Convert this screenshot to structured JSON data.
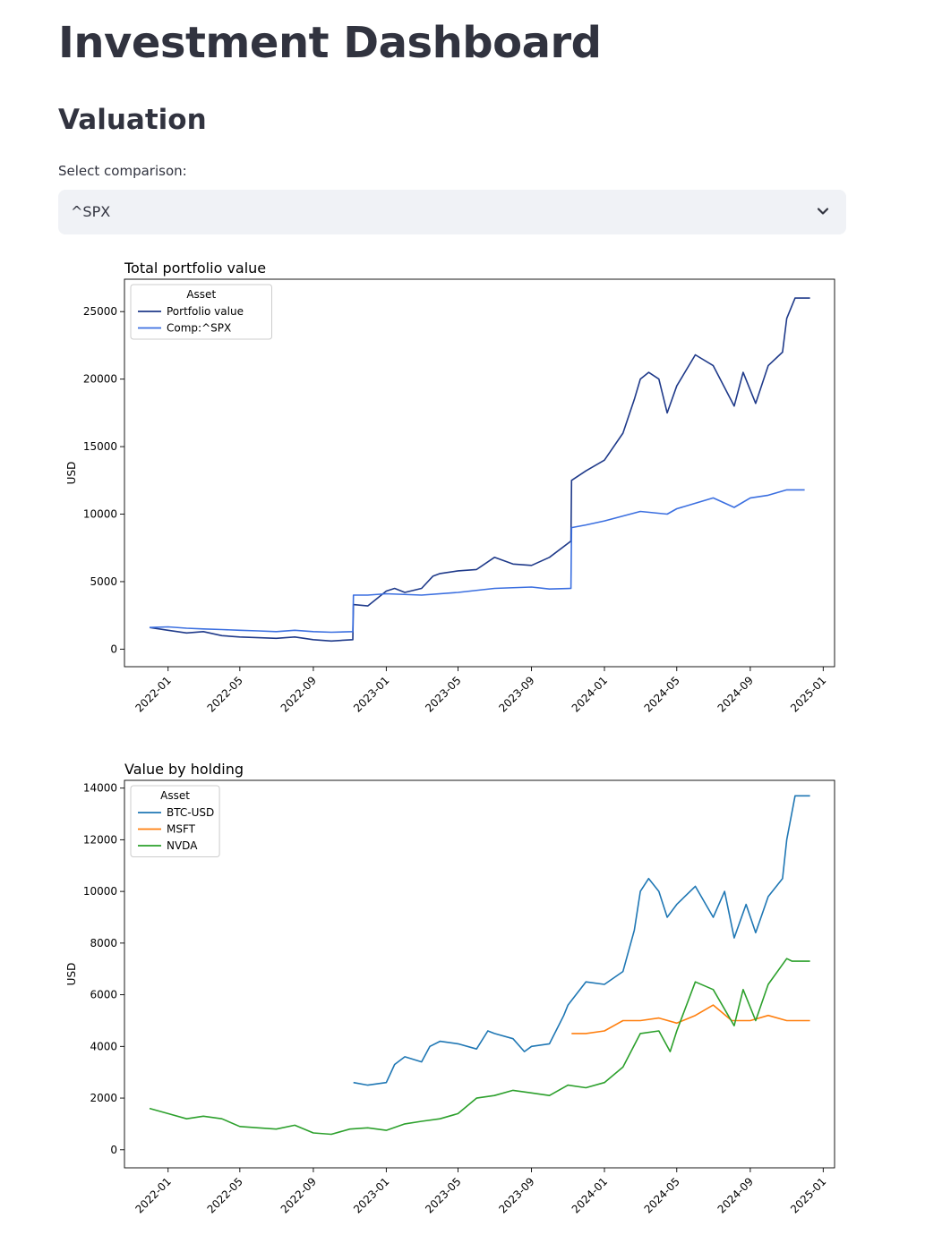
{
  "page": {
    "title": "Investment Dashboard",
    "section": "Valuation",
    "select_label": "Select comparison:",
    "select_value": "^SPX"
  },
  "chart_data": [
    {
      "type": "line",
      "title": "Total portfolio value",
      "xlabel": "",
      "ylabel": "USD",
      "x_ticks": [
        "2022-01",
        "2022-05",
        "2022-09",
        "2023-01",
        "2023-05",
        "2023-09",
        "2024-01",
        "2024-05",
        "2024-09",
        "2025-01"
      ],
      "xlim": [
        "2021-10-20",
        "2025-01-20"
      ],
      "ylim": [
        -1300,
        27400
      ],
      "y_ticks": [
        0,
        5000,
        10000,
        15000,
        20000,
        25000
      ],
      "grid": false,
      "legend": {
        "title": "Asset",
        "placement": "top-left"
      },
      "series": [
        {
          "name": "Portfolio value",
          "color": "#1f3a8a",
          "x": [
            "2021-12-01",
            "2022-01-01",
            "2022-02-01",
            "2022-03-01",
            "2022-04-01",
            "2022-05-01",
            "2022-06-01",
            "2022-07-01",
            "2022-08-01",
            "2022-09-01",
            "2022-10-01",
            "2022-11-06",
            "2022-11-07",
            "2022-12-01",
            "2023-01-01",
            "2023-01-15",
            "2023-02-01",
            "2023-03-01",
            "2023-03-20",
            "2023-04-01",
            "2023-05-01",
            "2023-06-01",
            "2023-07-01",
            "2023-08-01",
            "2023-09-01",
            "2023-10-01",
            "2023-11-06",
            "2023-11-07",
            "2023-12-01",
            "2024-01-01",
            "2024-02-01",
            "2024-02-20",
            "2024-03-01",
            "2024-03-15",
            "2024-04-01",
            "2024-04-15",
            "2024-05-01",
            "2024-06-01",
            "2024-07-01",
            "2024-08-05",
            "2024-08-20",
            "2024-09-10",
            "2024-10-01",
            "2024-10-25",
            "2024-11-01",
            "2024-11-15",
            "2024-12-01",
            "2024-12-10"
          ],
          "y": [
            1600,
            1400,
            1200,
            1300,
            1000,
            900,
            850,
            800,
            900,
            700,
            600,
            700,
            3300,
            3200,
            4300,
            4500,
            4200,
            4500,
            5400,
            5600,
            5800,
            5900,
            6800,
            6300,
            6200,
            6800,
            8000,
            12500,
            13200,
            14000,
            16000,
            18500,
            20000,
            20500,
            20000,
            17500,
            19500,
            21800,
            21000,
            18000,
            20500,
            18200,
            21000,
            22000,
            24500,
            26000,
            26000,
            26000
          ]
        },
        {
          "name": "Comp:^SPX",
          "color": "#3b6fe0",
          "x": [
            "2021-12-01",
            "2022-01-01",
            "2022-02-01",
            "2022-03-01",
            "2022-04-01",
            "2022-05-01",
            "2022-06-01",
            "2022-07-01",
            "2022-08-01",
            "2022-09-01",
            "2022-10-01",
            "2022-11-06",
            "2022-11-07",
            "2022-12-01",
            "2023-01-01",
            "2023-03-01",
            "2023-05-01",
            "2023-07-01",
            "2023-09-01",
            "2023-10-01",
            "2023-11-06",
            "2023-11-07",
            "2023-12-01",
            "2024-01-01",
            "2024-03-01",
            "2024-04-15",
            "2024-05-01",
            "2024-07-01",
            "2024-08-05",
            "2024-09-01",
            "2024-10-01",
            "2024-11-01",
            "2024-12-01"
          ],
          "y": [
            1600,
            1650,
            1550,
            1500,
            1450,
            1400,
            1350,
            1300,
            1400,
            1300,
            1250,
            1300,
            4000,
            4000,
            4100,
            4000,
            4200,
            4500,
            4600,
            4450,
            4500,
            9000,
            9200,
            9500,
            10200,
            10000,
            10400,
            11200,
            10500,
            11200,
            11400,
            11800,
            11800
          ]
        }
      ]
    },
    {
      "type": "line",
      "title": "Value by holding",
      "xlabel": "",
      "ylabel": "USD",
      "x_ticks": [
        "2022-01",
        "2022-05",
        "2022-09",
        "2023-01",
        "2023-05",
        "2023-09",
        "2024-01",
        "2024-05",
        "2024-09",
        "2025-01"
      ],
      "xlim": [
        "2021-10-20",
        "2025-01-20"
      ],
      "ylim": [
        -700,
        14300
      ],
      "y_ticks": [
        0,
        2000,
        4000,
        6000,
        8000,
        10000,
        12000,
        14000
      ],
      "grid": false,
      "legend": {
        "title": "Asset",
        "placement": "top-left"
      },
      "series": [
        {
          "name": "BTC-USD",
          "color": "#1f77b4",
          "x": [
            "2022-11-07",
            "2022-12-01",
            "2023-01-01",
            "2023-01-15",
            "2023-02-01",
            "2023-03-01",
            "2023-03-15",
            "2023-04-01",
            "2023-05-01",
            "2023-06-01",
            "2023-06-20",
            "2023-07-01",
            "2023-08-01",
            "2023-08-20",
            "2023-09-01",
            "2023-10-01",
            "2023-10-25",
            "2023-11-01",
            "2023-12-01",
            "2024-01-01",
            "2024-02-01",
            "2024-02-20",
            "2024-03-01",
            "2024-03-15",
            "2024-04-01",
            "2024-04-15",
            "2024-05-01",
            "2024-06-01",
            "2024-07-01",
            "2024-07-20",
            "2024-08-05",
            "2024-08-25",
            "2024-09-10",
            "2024-10-01",
            "2024-10-25",
            "2024-11-01",
            "2024-11-15",
            "2024-12-01",
            "2024-12-10"
          ],
          "y": [
            2600,
            2500,
            2600,
            3300,
            3600,
            3400,
            4000,
            4200,
            4100,
            3900,
            4600,
            4500,
            4300,
            3800,
            4000,
            4100,
            5200,
            5600,
            6500,
            6400,
            6900,
            8500,
            10000,
            10500,
            10000,
            9000,
            9500,
            10200,
            9000,
            10000,
            8200,
            9500,
            8400,
            9800,
            10500,
            12000,
            13700,
            13700,
            13700
          ]
        },
        {
          "name": "MSFT",
          "color": "#ff7f0e",
          "x": [
            "2023-11-07",
            "2023-12-01",
            "2024-01-01",
            "2024-02-01",
            "2024-03-01",
            "2024-04-01",
            "2024-05-01",
            "2024-06-01",
            "2024-07-01",
            "2024-08-01",
            "2024-09-01",
            "2024-10-01",
            "2024-11-01",
            "2024-12-01",
            "2024-12-10"
          ],
          "y": [
            4500,
            4500,
            4600,
            5000,
            5000,
            5100,
            4900,
            5200,
            5600,
            5000,
            5000,
            5200,
            5000,
            5000,
            5000
          ]
        },
        {
          "name": "NVDA",
          "color": "#2ca02c",
          "x": [
            "2021-12-01",
            "2022-01-01",
            "2022-02-01",
            "2022-03-01",
            "2022-04-01",
            "2022-05-01",
            "2022-06-01",
            "2022-07-01",
            "2022-08-01",
            "2022-09-01",
            "2022-10-01",
            "2022-11-01",
            "2022-12-01",
            "2023-01-01",
            "2023-02-01",
            "2023-03-01",
            "2023-04-01",
            "2023-05-01",
            "2023-06-01",
            "2023-07-01",
            "2023-08-01",
            "2023-09-01",
            "2023-10-01",
            "2023-11-01",
            "2023-12-01",
            "2024-01-01",
            "2024-02-01",
            "2024-03-01",
            "2024-04-01",
            "2024-04-20",
            "2024-05-01",
            "2024-06-01",
            "2024-07-01",
            "2024-08-05",
            "2024-08-20",
            "2024-09-10",
            "2024-10-01",
            "2024-11-01",
            "2024-11-10",
            "2024-12-01",
            "2024-12-10"
          ],
          "y": [
            1600,
            1400,
            1200,
            1300,
            1200,
            900,
            850,
            800,
            950,
            650,
            600,
            800,
            850,
            750,
            1000,
            1100,
            1200,
            1400,
            2000,
            2100,
            2300,
            2200,
            2100,
            2500,
            2400,
            2600,
            3200,
            4500,
            4600,
            3800,
            4600,
            6500,
            6200,
            4800,
            6200,
            5000,
            6400,
            7400,
            7300,
            7300,
            7300
          ]
        }
      ]
    }
  ]
}
